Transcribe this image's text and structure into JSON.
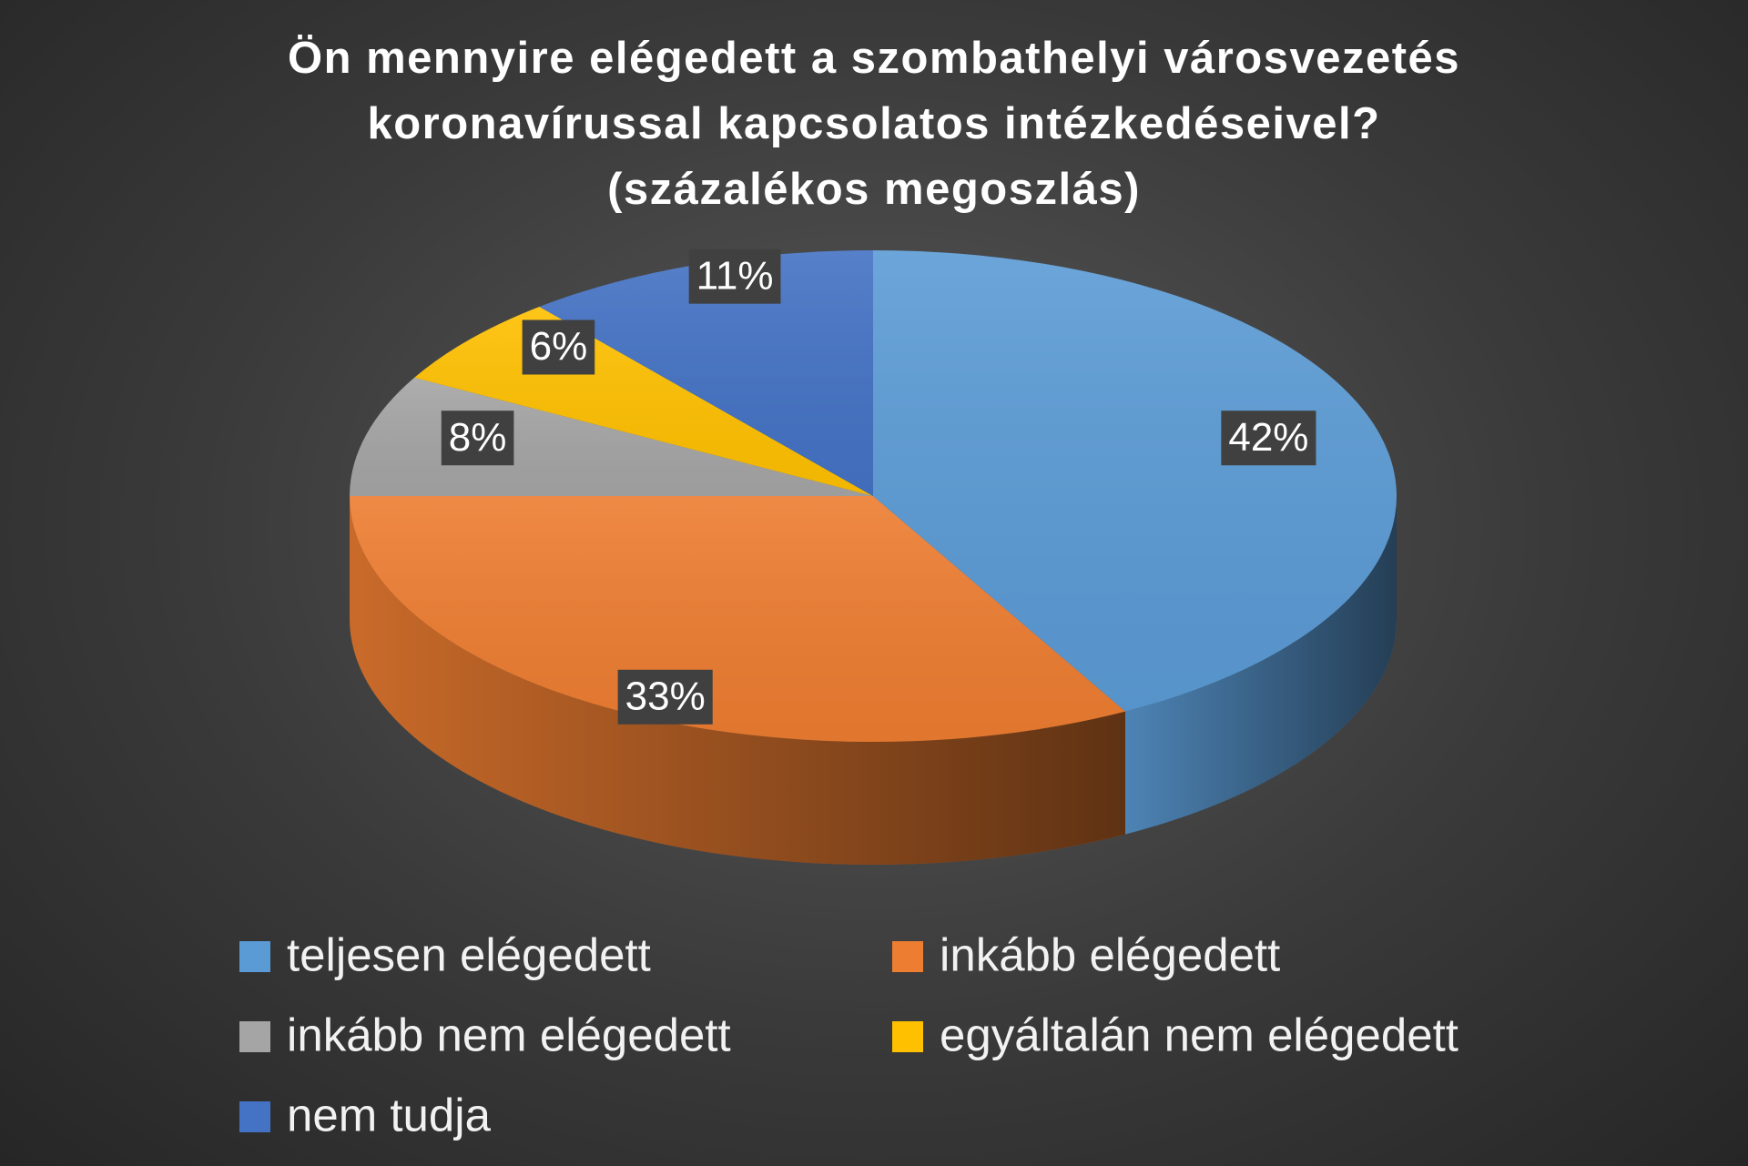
{
  "chart_data": {
    "type": "pie3d",
    "title": "Ön mennyire elégedett a szombathelyi városvezetés koronavírussal kapcsolatos intézkedéseivel?",
    "subtitle": "(százalékos megoszlás)",
    "categories": [
      "teljesen elégedett",
      "inkább elégedett",
      "inkább nem elégedett",
      "egyáltalán nem elégedett",
      "nem tudja"
    ],
    "values": [
      42,
      33,
      8,
      6,
      11
    ],
    "value_labels": [
      "42%",
      "33%",
      "8%",
      "6%",
      "11%"
    ],
    "colors": [
      "#5b9bd5",
      "#ed7d31",
      "#a5a5a5",
      "#ffc000",
      "#4472c4"
    ]
  }
}
